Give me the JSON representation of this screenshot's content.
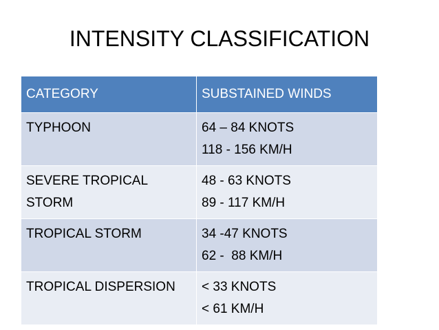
{
  "title": "INTENSITY CLASSIFICATION",
  "table": {
    "header": [
      "CATEGORY",
      "SUBSTAINED WINDS"
    ],
    "rows": [
      [
        "TYPHOON",
        [
          "64 – 84 KNOTS",
          "118 - 156 KM/H"
        ]
      ],
      [
        "SEVERE TROPICAL STORM",
        [
          "48 - 63 KNOTS",
          "89 - 117 KM/H"
        ]
      ],
      [
        "TROPICAL STORM",
        [
          "34 -47 KNOTS",
          "62 -  88 KM/H"
        ]
      ],
      [
        "TROPICAL DISPERSION",
        [
          "< 33 KNOTS",
          "< 61 KM/H"
        ]
      ]
    ]
  }
}
